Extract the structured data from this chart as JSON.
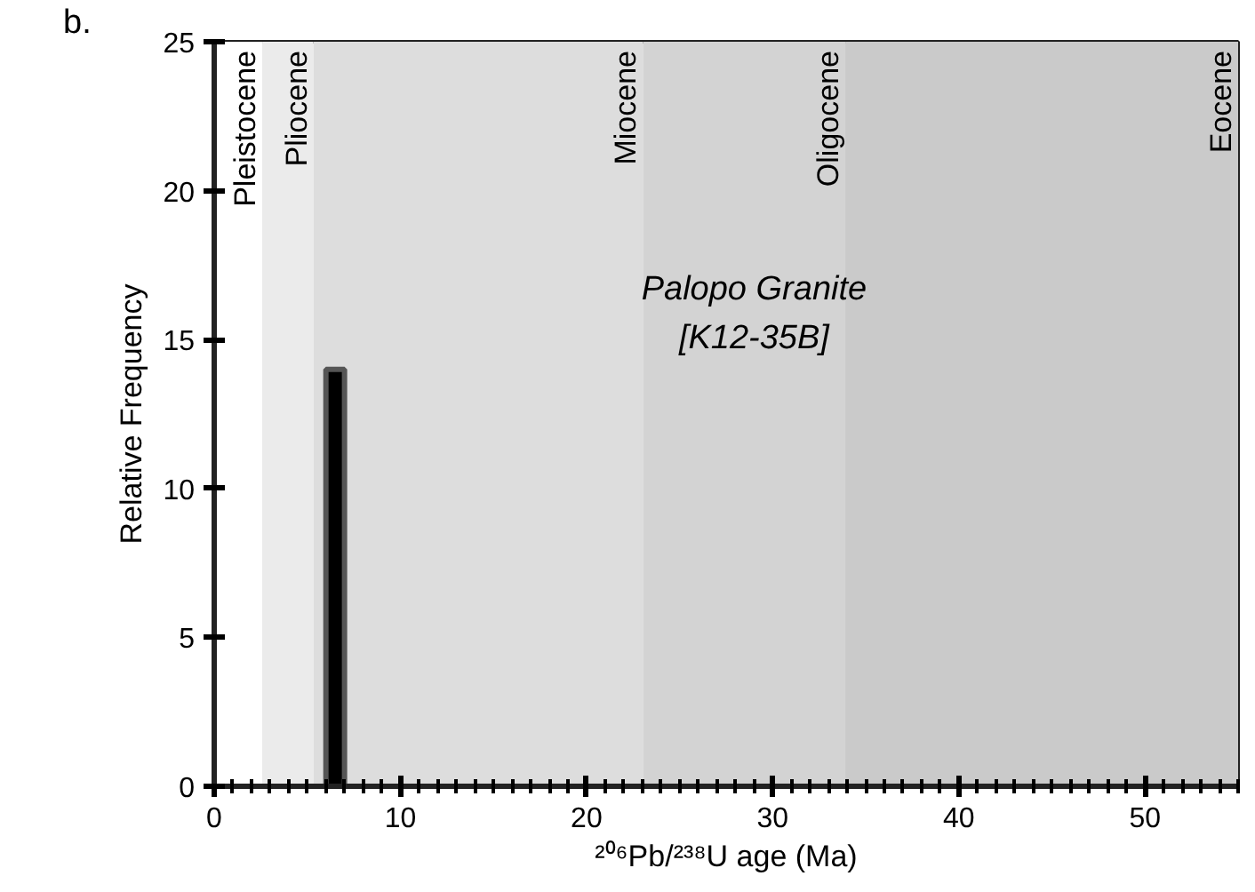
{
  "chart_data": {
    "type": "histogram",
    "xlabel": "²⁰⁶Pb/²³⁸U age (Ma)",
    "ylabel": "Relative Frequency",
    "bins": [
      6,
      7
    ],
    "values": [
      14
    ],
    "color": "#000000",
    "xlim": [
      0,
      55
    ],
    "ylim": [
      0,
      25
    ],
    "xticks": [
      0,
      10,
      20,
      30,
      40,
      50
    ],
    "yticks": [
      0,
      5,
      10,
      15,
      20,
      25
    ],
    "grid": false,
    "bands": [
      {
        "axis": "x",
        "from": 0,
        "to": 2.58,
        "label": "Pleistocene",
        "color": "#ffffff"
      },
      {
        "axis": "x",
        "from": 2.58,
        "to": 5.33,
        "label": "Pliocene",
        "color": "#ebebeb"
      },
      {
        "axis": "x",
        "from": 5.33,
        "to": 23.03,
        "label": "Miocene",
        "color": "#dddddd"
      },
      {
        "axis": "x",
        "from": 23.03,
        "to": 33.9,
        "label": "Oligocene",
        "color": "#d3d3d3"
      },
      {
        "axis": "x",
        "from": 33.9,
        "to": 55,
        "label": "Eocene",
        "color": "#cacaca"
      }
    ],
    "annotations": [
      "b.",
      "Palopo Granite\n[K12-35B]"
    ]
  }
}
